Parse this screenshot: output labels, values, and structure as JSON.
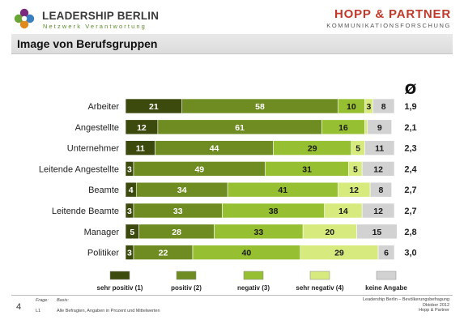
{
  "header": {
    "brand_left_title": "LEADERSHIP BERLIN",
    "brand_left_subtitle": "Netzwerk Verantwortung",
    "brand_right_title": "HOPP & PARTNER",
    "brand_right_subtitle": "KOMMUNIKATIONSFORSCHUNG"
  },
  "page_title": "Image von Berufsgruppen",
  "footer": {
    "page_number": "4",
    "frage_label": "Frage:",
    "basis_label": "Basis:",
    "l1_label": "L1",
    "basis_text": "Alle Befragten, Angaben in Prozent und Mittelwerten",
    "source_line1": "Leadership Berlin – Bevölkerungsbefragung",
    "source_line2": "Oktober 2012",
    "source_line3": "Hopp & Partner"
  },
  "colors": {
    "sehr_positiv": "#3d4a0e",
    "positiv": "#6f8c22",
    "negativ": "#96bf32",
    "sehr_negativ": "#d6ea7e",
    "keine_angabe": "#d2d2d2"
  },
  "chart_data": {
    "type": "bar",
    "stacked": true,
    "orientation": "horizontal",
    "mean_header": "Ø",
    "categories": [
      "Arbeiter",
      "Angestellte",
      "Unternehmer",
      "Leitende Angestellte",
      "Beamte",
      "Leitende Beamte",
      "Manager",
      "Politiker"
    ],
    "series": [
      {
        "name": "sehr positiv (1)",
        "values": [
          21,
          12,
          11,
          3,
          4,
          3,
          5,
          3
        ]
      },
      {
        "name": "positiv (2)",
        "values": [
          58,
          61,
          44,
          49,
          34,
          33,
          28,
          22
        ]
      },
      {
        "name": "negativ (3)",
        "values": [
          10,
          16,
          29,
          31,
          41,
          38,
          33,
          40
        ]
      },
      {
        "name": "sehr negativ (4)",
        "values": [
          3,
          1,
          5,
          5,
          12,
          14,
          20,
          29
        ]
      },
      {
        "name": "keine Angabe",
        "values": [
          8,
          9,
          11,
          12,
          8,
          12,
          15,
          6
        ]
      }
    ],
    "value_labels": [
      [
        "21",
        "58",
        "10",
        "3",
        "8"
      ],
      [
        "12",
        "61",
        "16",
        "",
        "9"
      ],
      [
        "11",
        "44",
        "29",
        "5",
        "11"
      ],
      [
        "3",
        "49",
        "31",
        "5",
        "12"
      ],
      [
        "4",
        "34",
        "41",
        "12",
        "8"
      ],
      [
        "3",
        "33",
        "38",
        "14",
        "12"
      ],
      [
        "5",
        "28",
        "33",
        "20",
        "15"
      ],
      [
        "3",
        "22",
        "40",
        "29",
        "6"
      ]
    ],
    "means": [
      "1,9",
      "2,1",
      "2,3",
      "2,4",
      "2,7",
      "2,7",
      "2,8",
      "3,0"
    ],
    "xlim": [
      0,
      100
    ],
    "legend_position": "bottom"
  }
}
